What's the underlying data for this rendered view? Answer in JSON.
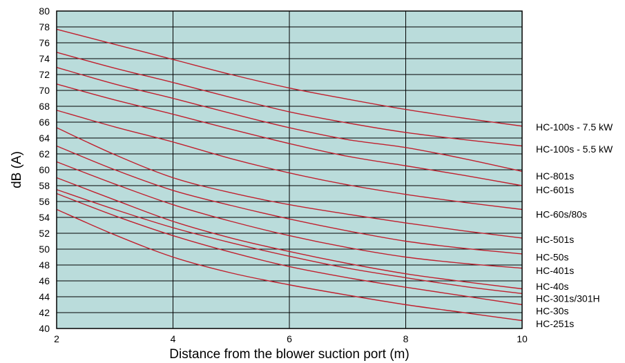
{
  "chart_data": {
    "type": "line",
    "xlabel": "Distance from the blower suction port (m)",
    "ylabel": "dB (A)",
    "xlim": [
      2,
      10
    ],
    "ylim": [
      40,
      80
    ],
    "x_ticks": [
      "2",
      "4",
      "6",
      "8",
      "10"
    ],
    "y_ticks": [
      "40",
      "42",
      "44",
      "46",
      "48",
      "50",
      "52",
      "54",
      "56",
      "58",
      "60",
      "62",
      "64",
      "66",
      "68",
      "70",
      "72",
      "74",
      "76",
      "78",
      "80"
    ],
    "grid": true,
    "legend_placement": "right",
    "colors": {
      "plot_background": "#badcdb",
      "line": "#c0202e",
      "grid": "#000000"
    },
    "series": [
      {
        "name": "HC-100s - 7.5 kW",
        "points": [
          [
            2,
            77.7
          ],
          [
            3,
            75.8
          ],
          [
            4,
            73.9
          ],
          [
            5,
            72.0
          ],
          [
            6,
            70.3
          ],
          [
            7,
            68.9
          ],
          [
            8,
            67.6
          ],
          [
            9,
            66.5
          ],
          [
            10,
            65.5
          ]
        ]
      },
      {
        "name": "HC-100s - 5.5 kW",
        "points": [
          [
            2,
            74.8
          ],
          [
            3,
            72.8
          ],
          [
            4,
            71.0
          ],
          [
            5,
            69.1
          ],
          [
            6,
            67.3
          ],
          [
            7,
            65.9
          ],
          [
            8,
            64.7
          ],
          [
            9,
            63.8
          ],
          [
            10,
            63.0
          ]
        ]
      },
      {
        "name": "HC-801s",
        "points": [
          [
            2,
            72.9
          ],
          [
            3,
            70.8
          ],
          [
            4,
            69.0
          ],
          [
            5,
            67.1
          ],
          [
            6,
            65.3
          ],
          [
            7,
            63.8
          ],
          [
            8,
            62.8
          ],
          [
            9,
            61.4
          ],
          [
            10,
            59.8
          ]
        ]
      },
      {
        "name": "HC-601s",
        "points": [
          [
            2,
            70.8
          ],
          [
            3,
            68.8
          ],
          [
            4,
            67.0
          ],
          [
            5,
            65.1
          ],
          [
            6,
            63.3
          ],
          [
            7,
            61.7
          ],
          [
            8,
            60.5
          ],
          [
            9,
            59.3
          ],
          [
            10,
            58.0
          ]
        ]
      },
      {
        "name": "HC-60s/80s",
        "points": [
          [
            2,
            67.5
          ],
          [
            3,
            65.4
          ],
          [
            4,
            63.5
          ],
          [
            5,
            61.4
          ],
          [
            6,
            59.6
          ],
          [
            7,
            58.1
          ],
          [
            8,
            56.9
          ],
          [
            9,
            55.9
          ],
          [
            10,
            55.0
          ]
        ]
      },
      {
        "name": "HC-501s",
        "points": [
          [
            2,
            65.3
          ],
          [
            3,
            61.9
          ],
          [
            4,
            59.0
          ],
          [
            5,
            57.1
          ],
          [
            6,
            55.6
          ],
          [
            7,
            54.4
          ],
          [
            8,
            53.3
          ],
          [
            9,
            52.3
          ],
          [
            10,
            51.4
          ]
        ]
      },
      {
        "name": "HC-50s",
        "points": [
          [
            2,
            63.0
          ],
          [
            3,
            60.0
          ],
          [
            4,
            57.4
          ],
          [
            5,
            55.5
          ],
          [
            6,
            53.8
          ],
          [
            7,
            52.3
          ],
          [
            8,
            51.0
          ],
          [
            9,
            50.1
          ],
          [
            10,
            49.4
          ]
        ]
      },
      {
        "name": "HC-401s",
        "points": [
          [
            2,
            61.0
          ],
          [
            3,
            58.2
          ],
          [
            4,
            55.6
          ],
          [
            5,
            53.5
          ],
          [
            6,
            51.7
          ],
          [
            7,
            50.2
          ],
          [
            8,
            49.0
          ],
          [
            9,
            48.2
          ],
          [
            10,
            47.6
          ]
        ]
      },
      {
        "name": "HC-40s",
        "points": [
          [
            2,
            59.0
          ],
          [
            3,
            56.2
          ],
          [
            4,
            53.5
          ],
          [
            5,
            51.4
          ],
          [
            6,
            49.7
          ],
          [
            7,
            48.2
          ],
          [
            8,
            46.9
          ],
          [
            9,
            45.9
          ],
          [
            10,
            45.0
          ]
        ]
      },
      {
        "name": "HC-301s/301H",
        "points": [
          [
            2,
            57.5
          ],
          [
            3,
            55.0
          ],
          [
            4,
            52.7
          ],
          [
            5,
            50.8
          ],
          [
            6,
            49.1
          ],
          [
            7,
            47.6
          ],
          [
            8,
            46.4
          ],
          [
            9,
            45.3
          ],
          [
            10,
            44.4
          ]
        ]
      },
      {
        "name": "HC-30s",
        "points": [
          [
            2,
            57.0
          ],
          [
            3,
            54.2
          ],
          [
            4,
            51.7
          ],
          [
            5,
            49.6
          ],
          [
            6,
            47.8
          ],
          [
            7,
            46.4
          ],
          [
            8,
            45.2
          ],
          [
            9,
            44.1
          ],
          [
            10,
            43.0
          ]
        ]
      },
      {
        "name": "HC-251s",
        "points": [
          [
            2,
            55.0
          ],
          [
            3,
            51.8
          ],
          [
            4,
            49.0
          ],
          [
            5,
            47.0
          ],
          [
            6,
            45.5
          ],
          [
            7,
            44.2
          ],
          [
            8,
            43.0
          ],
          [
            9,
            42.0
          ],
          [
            10,
            41.0
          ]
        ]
      }
    ],
    "legend_entries": [
      {
        "label": "HC-100s - 7.5 kW",
        "y": 65.4
      },
      {
        "label": "HC-100s - 5.5 kW",
        "y": 62.6
      },
      {
        "label": "HC-801s",
        "y": 59.2
      },
      {
        "label": "HC-601s",
        "y": 57.5
      },
      {
        "label": "HC-60s/80s",
        "y": 54.4
      },
      {
        "label": "HC-501s",
        "y": 51.2
      },
      {
        "label": "HC-50s",
        "y": 49.0
      },
      {
        "label": "HC-401s",
        "y": 47.3
      },
      {
        "label": "HC-40s",
        "y": 45.3
      },
      {
        "label": "HC-301s/301H",
        "y": 43.8
      },
      {
        "label": "HC-30s",
        "y": 42.2
      },
      {
        "label": "HC-251s",
        "y": 40.6
      }
    ]
  }
}
